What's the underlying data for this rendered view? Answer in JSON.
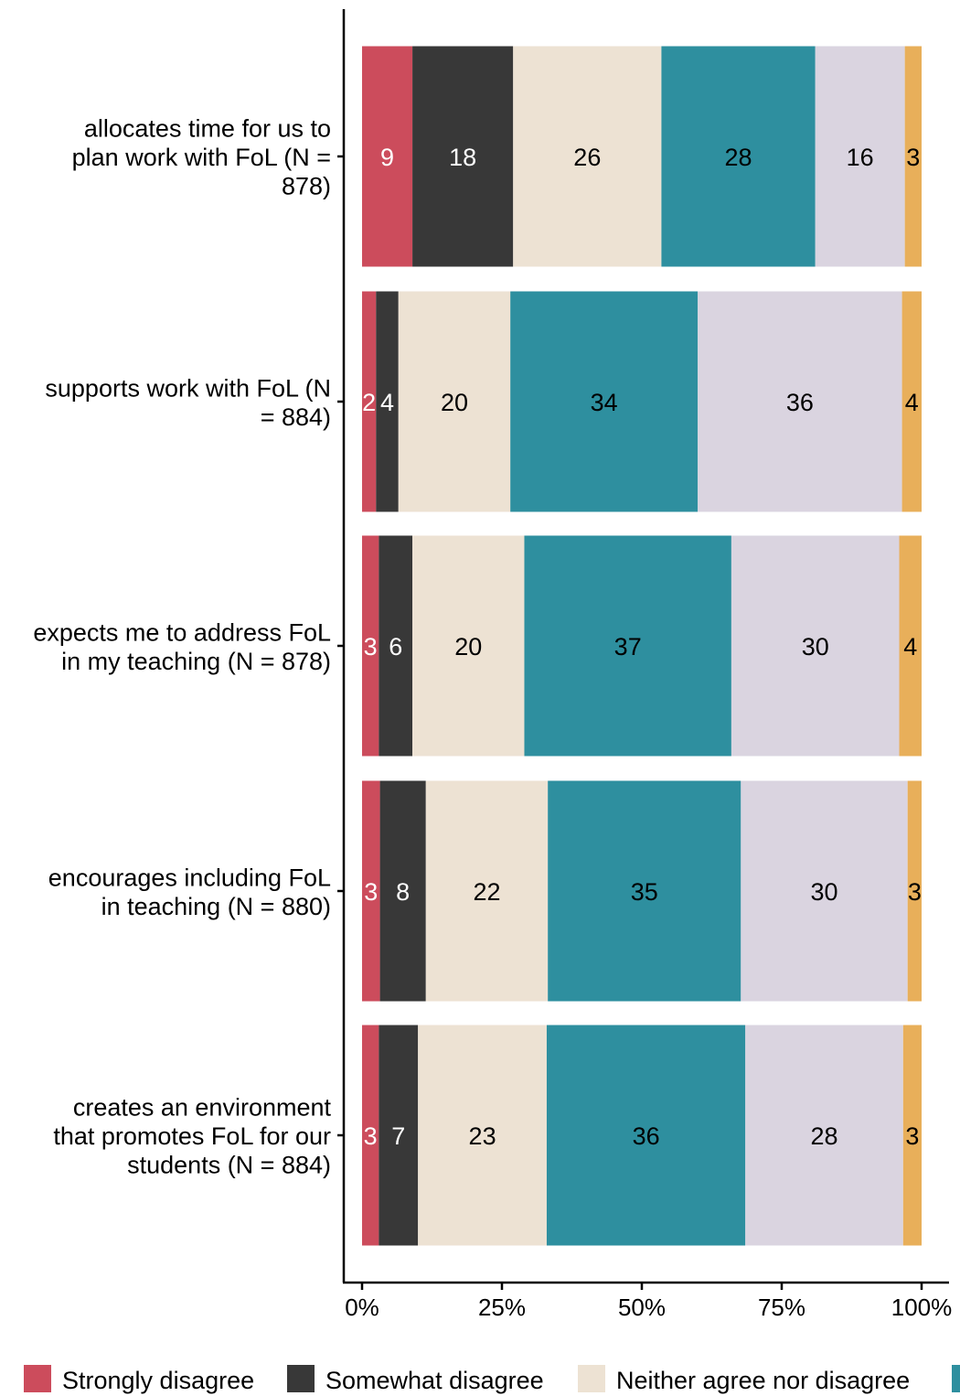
{
  "chart_data": {
    "type": "bar",
    "orientation": "horizontal",
    "stacked": "percent",
    "categories": [
      [
        "allocates time for us to",
        "plan work with FoL (N =",
        "878)"
      ],
      [
        "supports work with FoL (N",
        "= 884)"
      ],
      [
        "expects me to address FoL",
        "in my teaching (N = 878)"
      ],
      [
        "encourages including FoL",
        "in teaching (N = 880)"
      ],
      [
        "creates an environment",
        "that promotes FoL for our",
        "students (N = 884)"
      ]
    ],
    "series": [
      {
        "name": "Strongly disagree",
        "color": "#CC4C5C",
        "label_color": "#ffffff",
        "values": [
          9,
          2.5,
          3,
          3.2,
          3
        ],
        "labels": [
          "9",
          "2",
          "3",
          "3",
          "3"
        ]
      },
      {
        "name": "Somewhat disagree",
        "color": "#383838",
        "label_color": "#ffffff",
        "values": [
          18,
          4,
          6,
          8.2,
          7
        ],
        "labels": [
          "18",
          "4",
          "6",
          "8",
          "7"
        ]
      },
      {
        "name": "Neither agree nor disagree",
        "color": "#EDE2D3",
        "label_color": "#000000",
        "values": [
          26.5,
          20,
          20,
          21.8,
          23
        ],
        "labels": [
          "26",
          "20",
          "20",
          "22",
          "23"
        ]
      },
      {
        "name": "",
        "color": "#2E8F9F",
        "label_color": "#000000",
        "values": [
          27.5,
          33.5,
          37,
          34.5,
          35.5
        ],
        "labels": [
          "28",
          "34",
          "37",
          "35",
          "36"
        ]
      },
      {
        "name": "",
        "color": "#DAD4E0",
        "label_color": "#000000",
        "values": [
          16,
          36.5,
          30,
          29.8,
          28.2
        ],
        "labels": [
          "16",
          "36",
          "30",
          "30",
          "28"
        ]
      },
      {
        "name": "",
        "color": "#E8AF5A",
        "label_color": "#000000",
        "values": [
          3,
          3.5,
          4,
          2.5,
          3.3
        ],
        "labels": [
          "3",
          "4",
          "4",
          "3",
          "3"
        ]
      }
    ],
    "xlim": [
      0,
      100
    ],
    "xticks": [
      "0%",
      "25%",
      "50%",
      "75%",
      "100%"
    ],
    "xlabel": "",
    "ylabel": "",
    "grid": false,
    "legend": {
      "position": "bottom",
      "visible_entries": [
        "Strongly disagree",
        "Somewhat disagree",
        "Neither agree nor disagree"
      ]
    }
  }
}
